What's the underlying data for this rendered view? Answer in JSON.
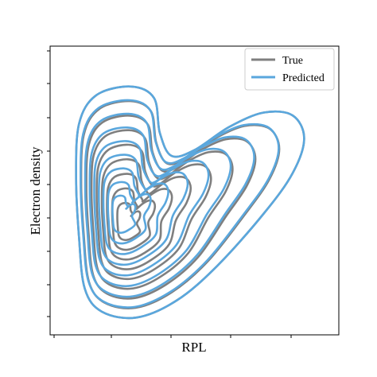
{
  "chart_data": {
    "type": "kde-contour",
    "xlabel": "RPL",
    "ylabel": "Electron density",
    "tick_labels_visible": false,
    "grid": false,
    "legend": {
      "placement": "top-right",
      "entries": [
        {
          "label": "True",
          "color": "#7f7f7f"
        },
        {
          "label": "Predicted",
          "color": "#5aa7dd"
        }
      ]
    },
    "series": [
      {
        "name": "True",
        "color": "#7f7f7f",
        "levels": 9,
        "mode_xy_fraction": [
          0.26,
          0.62
        ]
      },
      {
        "name": "Predicted",
        "color": "#5aa7dd",
        "levels": 9,
        "mode_xy_fraction": [
          0.26,
          0.62
        ]
      }
    ]
  }
}
